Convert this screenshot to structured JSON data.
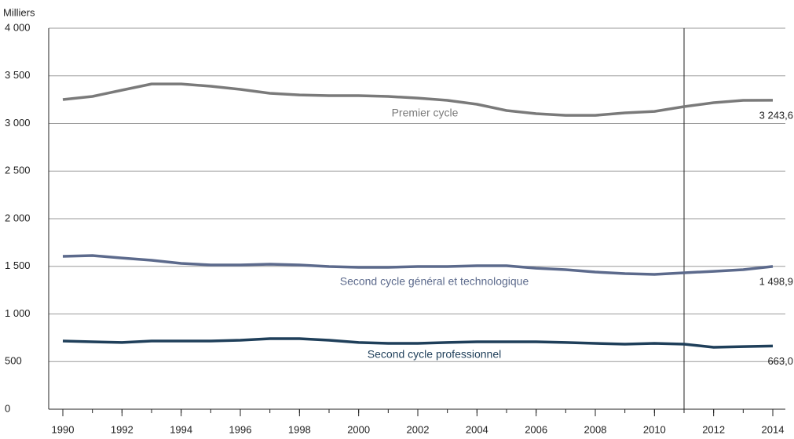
{
  "chart_data": {
    "type": "line",
    "y_label": "Milliers",
    "x": [
      1990,
      1991,
      1992,
      1993,
      1994,
      1995,
      1996,
      1997,
      1998,
      1999,
      2000,
      2001,
      2002,
      2003,
      2004,
      2005,
      2006,
      2007,
      2008,
      2009,
      2010,
      2011,
      2012,
      2013,
      2014
    ],
    "xlim": [
      1990,
      2014
    ],
    "xticks": [
      1990,
      1992,
      1994,
      1996,
      1998,
      2000,
      2002,
      2004,
      2006,
      2008,
      2010,
      2012,
      2014
    ],
    "ylim": [
      0,
      4000
    ],
    "yticks": [
      0,
      {
        "value": 500,
        "label": "500"
      },
      {
        "value": 1000,
        "label": "1 000"
      },
      {
        "value": 1500,
        "label": "1 500"
      },
      {
        "value": 2000,
        "label": "2 000"
      },
      {
        "value": 2500,
        "label": "2 500"
      },
      {
        "value": 3000,
        "label": "3 000"
      },
      {
        "value": 3500,
        "label": "3 500"
      },
      {
        "value": 4000,
        "label": "4 000"
      }
    ],
    "grid": true,
    "vline": 2011,
    "series": [
      {
        "name": "Premier cycle",
        "color": "#7a7a7a",
        "values": [
          3251,
          3284,
          3350,
          3415,
          3415,
          3391,
          3358,
          3317,
          3300,
          3292,
          3292,
          3284,
          3267,
          3243,
          3202,
          3136,
          3103,
          3086,
          3086,
          3111,
          3127,
          3177,
          3218,
          3243,
          3243.6
        ],
        "value_labels": [
          null,
          null,
          null,
          null,
          null,
          null,
          null,
          null,
          null,
          null,
          null,
          null,
          null,
          null,
          null,
          null,
          null,
          null,
          null,
          null,
          null,
          null,
          null,
          null,
          "3 243,6"
        ]
      },
      {
        "name": "Second cycle général et technologique",
        "color": "#5c6a8c",
        "values": [
          1605,
          1613,
          1588,
          1564,
          1531,
          1514,
          1514,
          1523,
          1514,
          1498,
          1490,
          1490,
          1498,
          1498,
          1506,
          1506,
          1481,
          1465,
          1440,
          1424,
          1416,
          1432,
          1448,
          1465,
          1498.9
        ],
        "value_labels": [
          null,
          null,
          null,
          null,
          null,
          null,
          null,
          null,
          null,
          null,
          null,
          null,
          null,
          null,
          null,
          null,
          null,
          null,
          null,
          null,
          null,
          null,
          null,
          null,
          "1 498,9"
        ]
      },
      {
        "name": "Second cycle professionnel",
        "color": "#1f3f5a",
        "values": [
          716,
          708,
          700,
          716,
          716,
          716,
          724,
          741,
          741,
          724,
          700,
          691,
          691,
          700,
          708,
          708,
          708,
          700,
          691,
          683,
          691,
          683,
          650,
          658,
          663.0
        ],
        "value_labels": [
          null,
          null,
          null,
          null,
          null,
          null,
          null,
          null,
          null,
          null,
          null,
          null,
          null,
          null,
          null,
          null,
          null,
          null,
          null,
          null,
          null,
          null,
          null,
          null,
          "663,0"
        ]
      }
    ]
  }
}
